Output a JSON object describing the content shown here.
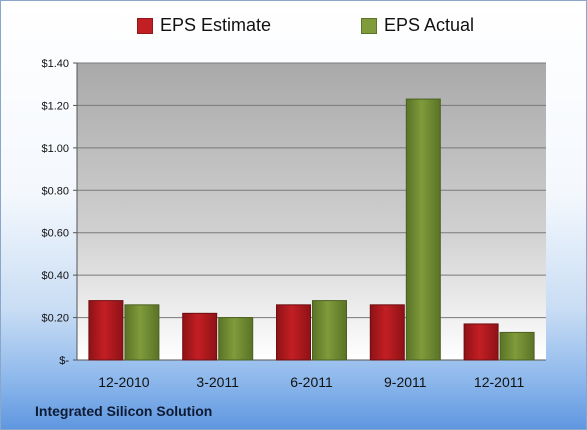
{
  "company": "Integrated Silicon Solution",
  "colors": {
    "estimate": "#c21f24",
    "actual": "#7f9b3a"
  },
  "chart_data": {
    "type": "bar",
    "categories": [
      "12-2010",
      "3-2011",
      "6-2011",
      "9-2011",
      "12-2011"
    ],
    "series": [
      {
        "name": "EPS Estimate",
        "values": [
          0.28,
          0.22,
          0.26,
          0.26,
          0.17
        ]
      },
      {
        "name": "EPS Actual",
        "values": [
          0.26,
          0.2,
          0.28,
          1.23,
          0.13
        ]
      }
    ],
    "ylim": [
      0,
      1.4
    ],
    "yticks": [
      0,
      0.2,
      0.4,
      0.6,
      0.8,
      1.0,
      1.2,
      1.4
    ],
    "ytick_labels": [
      "$-",
      "$0.20",
      "$0.40",
      "$0.60",
      "$0.80",
      "$1.00",
      "$1.20",
      "$1.40"
    ],
    "grid": true,
    "legend": "top"
  }
}
